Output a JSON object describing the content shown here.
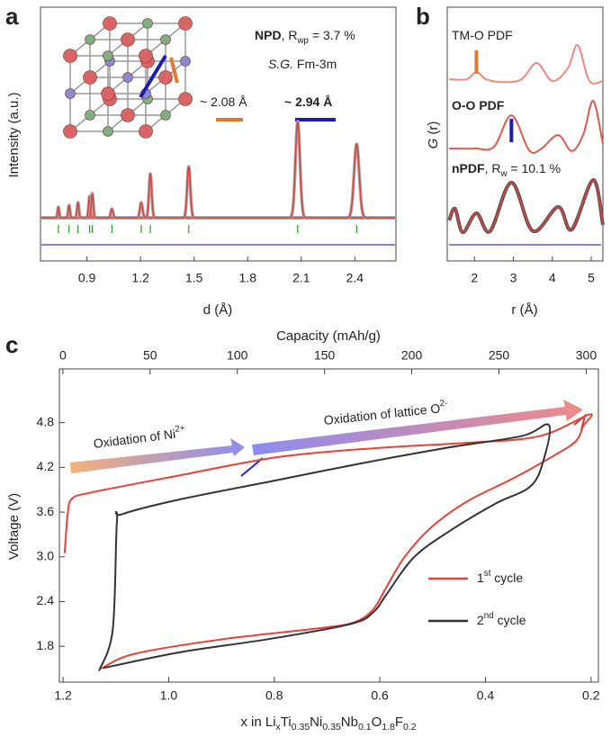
{
  "chart_data": [
    {
      "panel": "a",
      "type": "diffraction",
      "x_label": "d (Å)",
      "y_label": "Intensity (a.u.)",
      "x": [
        0.74,
        0.8,
        0.85,
        0.915,
        0.93,
        1.04,
        1.204,
        1.255,
        1.47,
        2.08,
        2.41
      ],
      "values": [
        12,
        14,
        17,
        24,
        27,
        10,
        17,
        49,
        57,
        107,
        82
      ],
      "color": "#e0403a",
      "xlim": [
        0.64,
        2.63
      ],
      "xticks": [
        0.9,
        1.2,
        1.5,
        1.8,
        2.1,
        2.4
      ],
      "ylim": [
        -48,
        234
      ],
      "annotations": [
        [
          {
            "text": "NPD",
            "style": "b"
          },
          {
            "text": ", R"
          },
          {
            "text": "wp",
            "style": "sub"
          },
          {
            "text": " = 3.7 %"
          }
        ],
        [
          {
            "text": "S.G.",
            "style": "i"
          },
          {
            "text": " Fm-3m"
          }
        ],
        [
          {
            "text": "~ 2.08 Å"
          }
        ],
        [
          {
            "text": "~ 2.94 Å",
            "style": "b"
          }
        ]
      ]
    },
    {
      "panel": "b",
      "type": "pdf",
      "x_label": "r (Å)",
      "y_label": [
        {
          "text": "G",
          "style": "i"
        },
        {
          "text": " (r)"
        }
      ],
      "xlim": [
        1.3,
        5.3
      ],
      "xticks": [
        2,
        3,
        4,
        5
      ],
      "ylim": [
        0,
        100
      ],
      "series": [
        {
          "name": [
            {
              "text": "TM-O PDF"
            }
          ],
          "color": "#f08a80",
          "label_color": "#e07a30",
          "x": [
            1.35,
            1.8,
            2.05,
            2.3,
            2.7,
            3.2,
            3.6,
            4.0,
            4.4,
            4.65,
            4.95,
            5.3
          ],
          "values": [
            71.6,
            71.6,
            74.5,
            71.6,
            70.5,
            71.5,
            78,
            70.9,
            76,
            85.1,
            71,
            70.9
          ]
        },
        {
          "name": [
            {
              "text": "O-O PDF",
              "style": "b"
            }
          ],
          "color": "#e05a50",
          "label_color": "#1c1ca8",
          "x": [
            1.35,
            2.0,
            2.5,
            2.95,
            3.4,
            3.7,
            4.15,
            4.5,
            4.8,
            5.05,
            5.3
          ],
          "values": [
            44.3,
            44.3,
            45,
            57.4,
            43.7,
            44,
            49.6,
            43.3,
            50,
            63.1,
            46.1
          ]
        },
        {
          "name": [
            {
              "text": "nPDF",
              "style": "b"
            },
            {
              "text": ", R"
            },
            {
              "text": "w",
              "style": "sub"
            },
            {
              "text": " = 10.1 %"
            }
          ],
          "color": "#e0403a",
          "label_color": "#222",
          "x": [
            1.35,
            1.5,
            1.7,
            2.05,
            2.4,
            2.95,
            3.5,
            4.15,
            4.5,
            5.05,
            5.3
          ],
          "values": [
            16,
            20.6,
            11.3,
            18.8,
            11.7,
            30.9,
            11.8,
            21.3,
            12.4,
            31.9,
            14.2
          ]
        }
      ]
    },
    {
      "panel": "c",
      "type": "line",
      "x_label": [
        {
          "text": "x in Li"
        },
        {
          "text": "x",
          "style": "sub"
        },
        {
          "text": "Ti"
        },
        {
          "text": "0.35",
          "style": "sub"
        },
        {
          "text": "Ni"
        },
        {
          "text": "0.35",
          "style": "sub"
        },
        {
          "text": "Nb"
        },
        {
          "text": "0.1",
          "style": "sub"
        },
        {
          "text": "O"
        },
        {
          "text": "1.8",
          "style": "sub"
        },
        {
          "text": "F"
        },
        {
          "text": "0.2",
          "style": "sub"
        }
      ],
      "x2_label": "Capacity (mAh/g)",
      "y_label": "Voltage (V)",
      "xlim": [
        1.207,
        0.186
      ],
      "xticks": [
        1.2,
        {
          "value": 1,
          "label": "1.0"
        },
        0.8,
        0.6,
        0.4,
        0.2
      ],
      "x2lim": [
        -2,
        307
      ],
      "x2ticks": [
        0,
        50,
        100,
        150,
        200,
        250,
        300
      ],
      "ylim": [
        1.32,
        5.52
      ],
      "yticks": [
        1.8,
        2.4,
        {
          "value": 3,
          "label": "3.0"
        },
        3.6,
        4.2,
        4.8
      ],
      "series": [
        {
          "name": [
            {
              "text": "1"
            },
            {
              "text": "st",
              "style": "sup"
            },
            {
              "text": "  cycle"
            }
          ],
          "color": "#e8413c",
          "x": [
            1.197,
            1.191,
            1.183,
            1.149,
            0.996,
            0.791,
            0.604,
            0.433,
            0.297,
            0.203,
            0.215,
            0.229,
            0.272,
            0.348,
            0.433,
            0.502,
            0.553,
            0.587,
            0.612,
            0.646,
            0.706,
            0.893,
            1.064,
            1.128
          ],
          "values": [
            3.05,
            3.59,
            3.78,
            3.86,
            4.07,
            4.34,
            4.46,
            4.53,
            4.62,
            4.91,
            4.75,
            4.55,
            4.35,
            4.05,
            3.75,
            3.4,
            3.0,
            2.6,
            2.3,
            2.13,
            2.05,
            1.9,
            1.7,
            1.5
          ]
        },
        {
          "name": [
            {
              "text": "2"
            },
            {
              "text": "nd",
              "style": "sup"
            },
            {
              "text": "  cycle"
            }
          ],
          "color": "#333333",
          "x": [
            1.132,
            1.106,
            1.098,
            1.089,
            0.979,
            0.808,
            0.638,
            0.467,
            0.331,
            0.28,
            0.289,
            0.314,
            0.382,
            0.467,
            0.536,
            0.587,
            0.612,
            0.655,
            0.808,
            0.979,
            1.123
          ],
          "values": [
            1.47,
            2.02,
            3.47,
            3.57,
            3.77,
            4.01,
            4.25,
            4.47,
            4.62,
            4.77,
            4.32,
            3.95,
            3.71,
            3.35,
            2.99,
            2.5,
            2.26,
            2.1,
            1.9,
            1.72,
            1.51
          ]
        }
      ],
      "annotations": [
        [
          {
            "text": "Oxidation of Ni"
          },
          {
            "text": "2+",
            "style": "sup"
          }
        ],
        [
          {
            "text": "Oxidation of lattice O"
          },
          {
            "text": "2-",
            "style": "sup"
          }
        ]
      ]
    }
  ]
}
